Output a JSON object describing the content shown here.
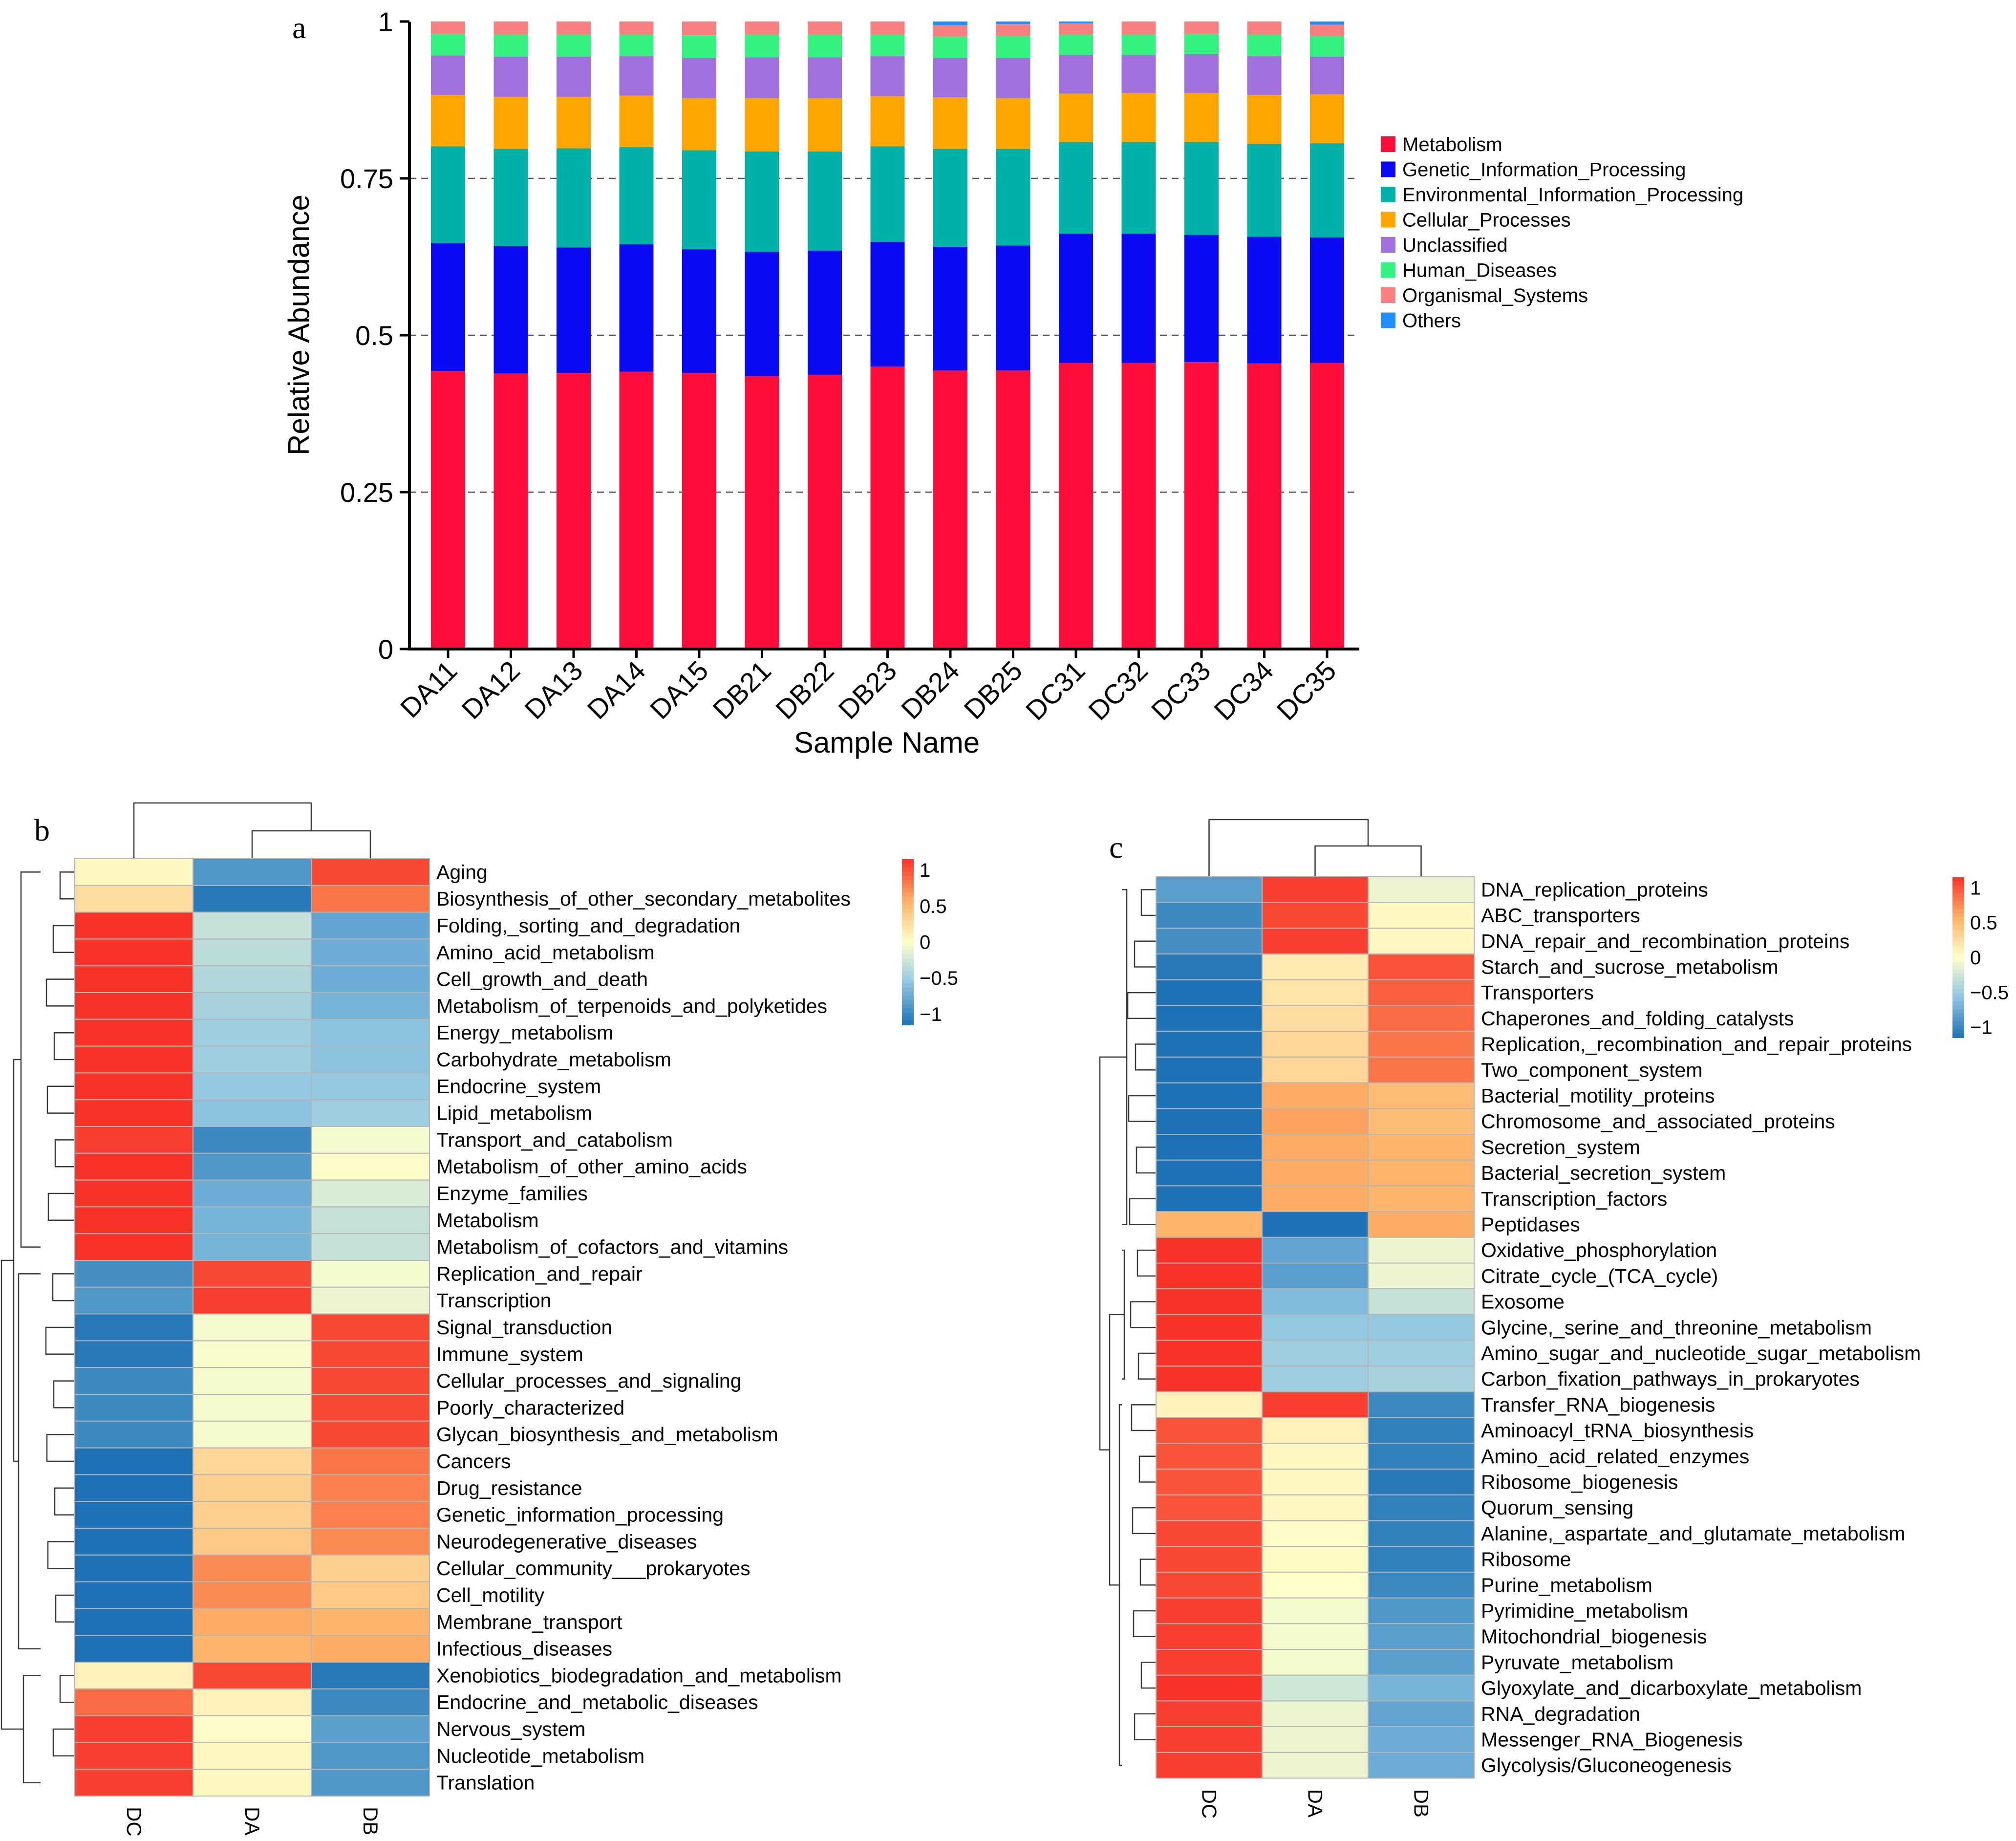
{
  "panels": {
    "a": "a",
    "b": "b",
    "c": "c"
  },
  "chart_data": [
    {
      "type": "bar",
      "stacked": true,
      "ylabel": "Relative Abundance",
      "xlabel": "Sample Name",
      "ylim": [
        0,
        1
      ],
      "yticks": [
        "0",
        "0.25",
        "0.5",
        "0.75",
        "1"
      ],
      "ytick_values": [
        0,
        0.25,
        0.5,
        0.75,
        1
      ],
      "gridlines": [
        0.25,
        0.5,
        0.75
      ],
      "legend_position": "right",
      "categories": [
        "DA11",
        "DA12",
        "DA13",
        "DA14",
        "DA15",
        "DB21",
        "DB22",
        "DB23",
        "DB24",
        "DB25",
        "DC31",
        "DC32",
        "DC33",
        "DC34",
        "DC35"
      ],
      "series": [
        {
          "name": "Metabolism",
          "color": "#FF0D3A",
          "values": [
            0.443,
            0.439,
            0.44,
            0.442,
            0.44,
            0.435,
            0.437,
            0.45,
            0.444,
            0.444,
            0.456,
            0.456,
            0.457,
            0.455,
            0.456
          ]
        },
        {
          "name": "Genetic_Information_Processing",
          "color": "#0A0AF5",
          "values": [
            0.204,
            0.203,
            0.2,
            0.203,
            0.197,
            0.198,
            0.198,
            0.199,
            0.197,
            0.199,
            0.206,
            0.206,
            0.203,
            0.202,
            0.2
          ]
        },
        {
          "name": "Environmental_Information_Processing",
          "color": "#00B1A8",
          "values": [
            0.154,
            0.155,
            0.158,
            0.155,
            0.158,
            0.16,
            0.158,
            0.152,
            0.156,
            0.154,
            0.146,
            0.146,
            0.148,
            0.148,
            0.15
          ]
        },
        {
          "name": "Cellular_Processes",
          "color": "#FFA500",
          "values": [
            0.082,
            0.083,
            0.082,
            0.082,
            0.083,
            0.085,
            0.085,
            0.08,
            0.082,
            0.081,
            0.077,
            0.078,
            0.078,
            0.078,
            0.078
          ]
        },
        {
          "name": "Unclassified",
          "color": "#A070DC",
          "values": [
            0.063,
            0.064,
            0.064,
            0.063,
            0.064,
            0.065,
            0.065,
            0.064,
            0.063,
            0.064,
            0.062,
            0.061,
            0.062,
            0.062,
            0.06
          ]
        },
        {
          "name": "Human_Diseases",
          "color": "#33F27F",
          "values": [
            0.034,
            0.035,
            0.035,
            0.034,
            0.036,
            0.036,
            0.036,
            0.034,
            0.034,
            0.035,
            0.032,
            0.032,
            0.032,
            0.034,
            0.033
          ]
        },
        {
          "name": "Organismal_Systems",
          "color": "#F98080",
          "values": [
            0.02,
            0.021,
            0.021,
            0.021,
            0.022,
            0.021,
            0.021,
            0.021,
            0.018,
            0.019,
            0.018,
            0.021,
            0.02,
            0.021,
            0.018
          ]
        },
        {
          "name": "Others",
          "color": "#1E90FF",
          "values": [
            0.0,
            0.0,
            0.0,
            0.0,
            0.0,
            0.0,
            0.0,
            0.0,
            0.006,
            0.004,
            0.003,
            0.0,
            0.0,
            0.0,
            0.005
          ]
        }
      ]
    },
    {
      "type": "heatmap",
      "columns": [
        "DC",
        "DA",
        "DB"
      ],
      "colorbar_ticks": [
        "1",
        "0.5",
        "0",
        "−0.5",
        "−1"
      ],
      "colorbar_tick_values": [
        1,
        0.5,
        0,
        -0.5,
        -1
      ],
      "scale": {
        "min": -1.15,
        "max": 1.15,
        "colors": [
          "#1F72B5",
          "#8FC6E2",
          "#FFFFCC",
          "#FDB168",
          "#F8332A"
        ]
      },
      "rows": [
        "Aging",
        "Biosynthesis_of_other_secondary_metabolites",
        "Folding,_sorting_and_degradation",
        "Amino_acid_metabolism",
        "Cell_growth_and_death",
        "Metabolism_of_terpenoids_and_polyketides",
        "Energy_metabolism",
        "Carbohydrate_metabolism",
        "Endocrine_system",
        "Lipid_metabolism",
        "Transport_and_catabolism",
        "Metabolism_of_other_amino_acids",
        "Enzyme_families",
        "Metabolism",
        "Metabolism_of_cofactors_and_vitamins",
        "Replication_and_repair",
        "Transcription",
        "Signal_transduction",
        "Immune_system",
        "Cellular_processes_and_signaling",
        "Poorly_characterized",
        "Glycan_biosynthesis_and_metabolism",
        "Cancers",
        "Drug_resistance",
        "Genetic_information_processing",
        "Neurodegenerative_diseases",
        "Cellular_community___prokaryotes",
        "Cell_motility",
        "Membrane_transport",
        "Infectious_diseases",
        "Xenobiotics_biodegradation_and_metabolism",
        "Endocrine_and_metabolic_diseases",
        "Nervous_system",
        "Nucleotide_metabolism",
        "Translation"
      ],
      "values": [
        [
          0.05,
          -0.9,
          1.05
        ],
        [
          0.25,
          -1.1,
          0.85
        ],
        [
          1.15,
          -0.3,
          -0.8
        ],
        [
          1.15,
          -0.35,
          -0.75
        ],
        [
          1.15,
          -0.4,
          -0.75
        ],
        [
          1.15,
          -0.45,
          -0.7
        ],
        [
          1.15,
          -0.5,
          -0.6
        ],
        [
          1.15,
          -0.5,
          -0.6
        ],
        [
          1.15,
          -0.55,
          -0.55
        ],
        [
          1.15,
          -0.6,
          -0.5
        ],
        [
          1.1,
          -1.0,
          -0.05
        ],
        [
          1.15,
          -0.9,
          0.02
        ],
        [
          1.15,
          -0.75,
          -0.2
        ],
        [
          1.15,
          -0.7,
          -0.3
        ],
        [
          1.15,
          -0.7,
          -0.3
        ],
        [
          -0.95,
          1.05,
          -0.05
        ],
        [
          -0.9,
          1.1,
          -0.1
        ],
        [
          -1.1,
          -0.05,
          1.05
        ],
        [
          -1.1,
          -0.03,
          1.05
        ],
        [
          -1.0,
          -0.05,
          1.05
        ],
        [
          -1.0,
          -0.05,
          1.05
        ],
        [
          -1.0,
          -0.05,
          1.05
        ],
        [
          -1.15,
          0.3,
          0.85
        ],
        [
          -1.15,
          0.35,
          0.8
        ],
        [
          -1.15,
          0.35,
          0.8
        ],
        [
          -1.15,
          0.4,
          0.75
        ],
        [
          -1.15,
          0.75,
          0.35
        ],
        [
          -1.15,
          0.75,
          0.4
        ],
        [
          -1.15,
          0.6,
          0.55
        ],
        [
          -1.15,
          0.55,
          0.6
        ],
        [
          0.1,
          1.05,
          -1.1
        ],
        [
          0.9,
          0.1,
          -1.0
        ],
        [
          1.1,
          0.02,
          -0.85
        ],
        [
          1.1,
          0.05,
          -0.9
        ],
        [
          1.1,
          0.05,
          -0.9
        ]
      ],
      "dendrogram": "3-group"
    },
    {
      "type": "heatmap",
      "columns": [
        "DC",
        "DA",
        "DB"
      ],
      "colorbar_ticks": [
        "1",
        "0.5",
        "0",
        "−0.5",
        "−1"
      ],
      "colorbar_tick_values": [
        1,
        0.5,
        0,
        -0.5,
        -1
      ],
      "scale": {
        "min": -1.15,
        "max": 1.15,
        "colors": [
          "#1F72B5",
          "#8FC6E2",
          "#FFFFCC",
          "#FDB168",
          "#F8332A"
        ]
      },
      "rows": [
        "DNA_replication_proteins",
        "ABC_transporters",
        "DNA_repair_and_recombination_proteins",
        "Starch_and_sucrose_metabolism",
        "Transporters",
        "Chaperones_and_folding_catalysts",
        "Replication,_recombination_and_repair_proteins",
        "Two_component_system",
        "Bacterial_motility_proteins",
        "Chromosome_and_associated_proteins",
        "Secretion_system",
        "Bacterial_secretion_system",
        "Transcription_factors",
        "Peptidases",
        "Oxidative_phosphorylation",
        "Citrate_cycle_(TCA_cycle)",
        "Exosome",
        "Glycine,_serine_and_threonine_metabolism",
        "Amino_sugar_and_nucleotide_sugar_metabolism",
        "Carbon_fixation_pathways_in_prokaryotes",
        "Transfer_RNA_biogenesis",
        "Aminoacyl_tRNA_biosynthesis",
        "Amino_acid_related_enzymes",
        "Ribosome_biogenesis",
        "Quorum_sensing",
        "Alanine,_aspartate_and_glutamate_metabolism",
        "Ribosome",
        "Purine_metabolism",
        "Pyrimidine_metabolism",
        "Mitochondrial_biogenesis",
        "Pyruvate_metabolism",
        "Glyoxylate_and_dicarboxylate_metabolism",
        "RNA_degradation",
        "Messenger_RNA_Biogenesis",
        "Glycolysis/Gluconeogenesis"
      ],
      "values": [
        [
          -0.85,
          1.1,
          -0.1
        ],
        [
          -1.0,
          1.05,
          0.05
        ],
        [
          -0.95,
          1.1,
          0.05
        ],
        [
          -1.1,
          0.15,
          1.0
        ],
        [
          -1.15,
          0.2,
          0.95
        ],
        [
          -1.15,
          0.25,
          0.9
        ],
        [
          -1.15,
          0.3,
          0.85
        ],
        [
          -1.15,
          0.3,
          0.85
        ],
        [
          -1.15,
          0.6,
          0.5
        ],
        [
          -1.15,
          0.65,
          0.5
        ],
        [
          -1.15,
          0.6,
          0.55
        ],
        [
          -1.15,
          0.6,
          0.55
        ],
        [
          -1.15,
          0.6,
          0.55
        ],
        [
          0.55,
          -1.15,
          0.6
        ],
        [
          1.15,
          -0.8,
          -0.1
        ],
        [
          1.15,
          -0.85,
          -0.1
        ],
        [
          1.15,
          -0.65,
          -0.3
        ],
        [
          1.15,
          -0.55,
          -0.55
        ],
        [
          1.15,
          -0.5,
          -0.5
        ],
        [
          1.15,
          -0.5,
          -0.45
        ],
        [
          0.1,
          1.1,
          -1.0
        ],
        [
          1.0,
          0.1,
          -1.05
        ],
        [
          1.0,
          0.05,
          -1.05
        ],
        [
          1.0,
          0.05,
          -1.1
        ],
        [
          1.0,
          0.05,
          -1.05
        ],
        [
          1.05,
          0.02,
          -1.05
        ],
        [
          1.05,
          0.03,
          -1.05
        ],
        [
          1.05,
          0.0,
          -1.0
        ],
        [
          1.1,
          -0.05,
          -0.9
        ],
        [
          1.1,
          -0.05,
          -0.85
        ],
        [
          1.1,
          -0.05,
          -0.85
        ],
        [
          1.15,
          -0.25,
          -0.7
        ],
        [
          1.1,
          -0.1,
          -0.8
        ],
        [
          1.1,
          -0.1,
          -0.75
        ],
        [
          1.1,
          -0.1,
          -0.75
        ]
      ],
      "dendrogram": "3-group"
    }
  ]
}
